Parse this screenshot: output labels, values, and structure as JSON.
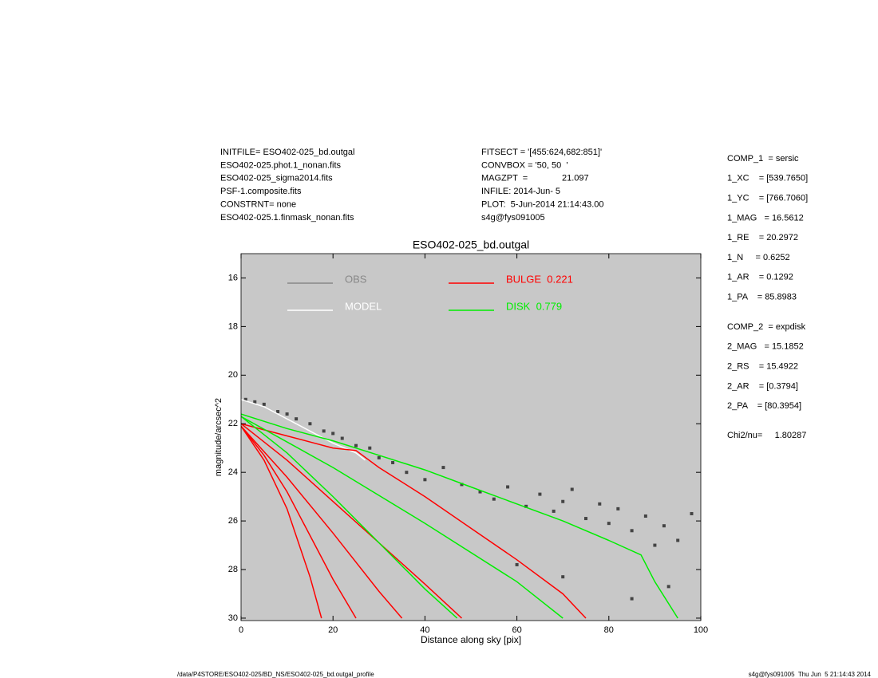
{
  "header": {
    "left": [
      "INITFILE= ESO402-025_bd.outgal",
      "ESO402-025.phot.1_nonan.fits",
      "ESO402-025_sigma2014.fits",
      "PSF-1.composite.fits",
      "CONSTRNT= none",
      "ESO402-025.1.finmask_nonan.fits"
    ],
    "middle": [
      "FITSECT = '[455:624,682:851]'",
      "CONVBOX = '50, 50  '",
      "MAGZPT  =              21.097",
      "INFILE: 2014-Jun- 5",
      "PLOT:  5-Jun-2014 21:14:43.00",
      "s4g@fys091005"
    ]
  },
  "parameters": [
    [
      "COMP_1  = sersic",
      "1_XC    = [539.7650]",
      "1_YC    = [766.7060]",
      "1_MAG   = 16.5612",
      "1_RE    = 20.2972",
      "1_N     = 0.6252",
      "1_AR    = 0.1292",
      "1_PA    = 85.8983"
    ],
    [
      "COMP_2  = expdisk",
      "2_MAG   = 15.1852",
      "2_RS    = 15.4922",
      "2_AR    = [0.3794]",
      "2_PA    = [80.3954]"
    ],
    [
      "Chi2/nu=     1.80287"
    ]
  ],
  "footer": {
    "left": "/data/P4STORE/ESO402-025/BD_NS/ESO402-025_bd.outgal_profile",
    "right": "s4g@fys091005  Thu Jun  5 21:14:43 2014"
  },
  "chart_data": {
    "type": "profile",
    "title": "ESO402-025_bd.outgal",
    "x_label": "Distance along sky [pix]",
    "y_label": "magnitude/arcsec^2",
    "xlim": [
      0,
      100
    ],
    "xticks": [
      0,
      20,
      40,
      60,
      80,
      100
    ],
    "ylim": [
      30.1,
      15
    ],
    "yticks": [
      16,
      18,
      20,
      22,
      24,
      26,
      28,
      30
    ],
    "background": "#c8c8c8",
    "series": [
      {
        "name": "OBS",
        "color": "#888888",
        "marker_color": "#444444",
        "style": "points",
        "x": [
          1,
          3,
          5,
          8,
          10,
          12,
          15,
          18,
          20,
          22,
          25,
          28,
          30,
          33,
          36,
          40,
          44,
          48,
          52,
          55,
          58,
          62,
          65,
          68,
          70,
          72,
          75,
          78,
          80,
          82,
          85,
          88,
          90,
          92,
          95,
          98,
          60,
          70,
          85,
          93
        ],
        "values": [
          21.0,
          21.1,
          21.2,
          21.5,
          21.6,
          21.8,
          22.0,
          22.3,
          22.4,
          22.6,
          22.9,
          23.0,
          23.4,
          23.6,
          24.0,
          24.3,
          23.8,
          24.5,
          24.8,
          25.1,
          24.6,
          25.4,
          24.9,
          25.6,
          25.2,
          24.7,
          25.9,
          25.3,
          26.1,
          25.5,
          26.4,
          25.8,
          27.0,
          26.2,
          26.8,
          25.7,
          27.8,
          28.3,
          29.2,
          28.7
        ]
      },
      {
        "name": "MODEL",
        "color": "#ffffff",
        "style": "lines",
        "lines": [
          {
            "x": [
              0,
              5,
              10,
              15,
              20,
              25,
              27
            ],
            "values": [
              21.0,
              21.3,
              21.8,
              22.3,
              22.8,
              23.2,
              23.5
            ]
          }
        ]
      },
      {
        "name": "BULGE  0.221",
        "color": "#ff0000",
        "style": "lines",
        "lines": [
          {
            "x": [
              0,
              5,
              10,
              15,
              17.5
            ],
            "values": [
              22.1,
              23.5,
              25.5,
              28.3,
              30
            ]
          },
          {
            "x": [
              0,
              5,
              10,
              15,
              20,
              25
            ],
            "values": [
              22.1,
              23.3,
              24.8,
              26.6,
              28.4,
              30
            ]
          },
          {
            "x": [
              0,
              10,
              20,
              30,
              35
            ],
            "values": [
              22.1,
              24.2,
              26.5,
              28.9,
              30
            ]
          },
          {
            "x": [
              0,
              10,
              20,
              30,
              40,
              48
            ],
            "values": [
              22.0,
              23.5,
              25.2,
              26.9,
              28.6,
              30
            ]
          },
          {
            "x": [
              0,
              10,
              20,
              25,
              30,
              40,
              50,
              60,
              70,
              75
            ],
            "values": [
              22.0,
              22.5,
              23.0,
              23.1,
              23.8,
              25.0,
              26.3,
              27.6,
              29.0,
              30
            ]
          }
        ]
      },
      {
        "name": "DISK  0.779",
        "color": "#00ee00",
        "style": "lines",
        "lines": [
          {
            "x": [
              0,
              10,
              20,
              30,
              40,
              47
            ],
            "values": [
              21.7,
              23.2,
              25.0,
              26.9,
              28.8,
              30
            ]
          },
          {
            "x": [
              0,
              20,
              40,
              60,
              70
            ],
            "values": [
              21.7,
              23.8,
              26.1,
              28.5,
              30
            ]
          },
          {
            "x": [
              0,
              10,
              20,
              30,
              40,
              50,
              60,
              70,
              80,
              87,
              90,
              95
            ],
            "values": [
              21.6,
              22.2,
              22.7,
              23.3,
              23.9,
              24.6,
              25.3,
              26.0,
              26.8,
              27.4,
              28.5,
              30
            ]
          }
        ]
      }
    ]
  }
}
